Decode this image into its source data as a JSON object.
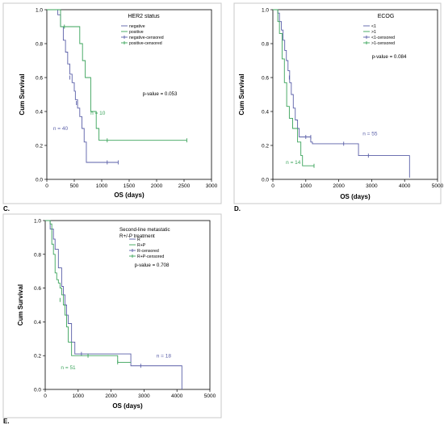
{
  "colors": {
    "blue": "#5a5fa8",
    "green": "#3aa35a",
    "frame": "#000000"
  },
  "panels": [
    {
      "letter": "C.",
      "legend_title": "HER2 status",
      "legend_items": [
        "negative",
        "positive",
        "negative-censored",
        "positive-censored"
      ],
      "pvalue": "p-value = 0.053",
      "annotations": [
        {
          "text": "n = 40",
          "series": 0,
          "x": 250,
          "y": 0.29
        },
        {
          "text": "n = 10",
          "series": 1,
          "x": 930,
          "y": 0.38
        }
      ]
    },
    {
      "letter": "D.",
      "legend_title": "ECOG",
      "legend_items": [
        "<1",
        ">1",
        "<1-censored",
        ">1-censored"
      ],
      "pvalue": "p-value = 0.084",
      "annotations": [
        {
          "text": "n = 55",
          "series": 0,
          "x": 2950,
          "y": 0.26
        },
        {
          "text": "n = 14",
          "series": 1,
          "x": 620,
          "y": 0.09
        }
      ]
    },
    {
      "letter": "E.",
      "legend_title": "Second-line metastatic R+/-P treatment",
      "legend_items": [
        "R",
        "R+P",
        "R-censored",
        "R+P-censored"
      ],
      "pvalue": "p-value = 0.708",
      "annotations": [
        {
          "text": "n = 18",
          "series": 0,
          "x": 3600,
          "y": 0.19
        },
        {
          "text": "n = 51",
          "series": 1,
          "x": 700,
          "y": 0.12
        }
      ]
    }
  ],
  "chart_data": [
    {
      "type": "line",
      "ylabel": "Cum Survival",
      "xlabel": "OS (days)",
      "xlim": [
        0,
        3000
      ],
      "ylim": [
        0,
        1
      ],
      "xticks": [
        0,
        500,
        1000,
        1500,
        2000,
        2500,
        3000
      ],
      "yticks": [
        0.0,
        0.2,
        0.4,
        0.6,
        0.8,
        1.0
      ],
      "series": [
        {
          "name": "negative",
          "color": "#5a5fa8",
          "steps": [
            [
              0,
              1.0
            ],
            [
              200,
              0.97
            ],
            [
              250,
              0.9
            ],
            [
              300,
              0.82
            ],
            [
              340,
              0.75
            ],
            [
              380,
              0.68
            ],
            [
              420,
              0.62
            ],
            [
              460,
              0.57
            ],
            [
              500,
              0.52
            ],
            [
              520,
              0.47
            ],
            [
              560,
              0.42
            ],
            [
              600,
              0.37
            ],
            [
              640,
              0.3
            ],
            [
              680,
              0.22
            ],
            [
              720,
              0.1
            ],
            [
              1300,
              0.1
            ]
          ],
          "censored": [
            [
              420,
              0.6
            ],
            [
              540,
              0.45
            ],
            [
              1100,
              0.1
            ],
            [
              1300,
              0.1
            ]
          ]
        },
        {
          "name": "positive",
          "color": "#3aa35a",
          "steps": [
            [
              0,
              1.0
            ],
            [
              180,
              1.0
            ],
            [
              250,
              0.9
            ],
            [
              600,
              0.8
            ],
            [
              650,
              0.7
            ],
            [
              700,
              0.6
            ],
            [
              800,
              0.4
            ],
            [
              900,
              0.3
            ],
            [
              950,
              0.23
            ],
            [
              2550,
              0.23
            ]
          ],
          "censored": [
            [
              320,
              0.9
            ],
            [
              1100,
              0.23
            ],
            [
              2550,
              0.23
            ]
          ]
        }
      ]
    },
    {
      "type": "line",
      "ylabel": "Cum Survival",
      "xlabel": "OS (days)",
      "xlim": [
        0,
        5000
      ],
      "ylim": [
        0,
        1
      ],
      "xticks": [
        0,
        1000,
        2000,
        3000,
        4000,
        5000
      ],
      "yticks": [
        0.0,
        0.2,
        0.4,
        0.6,
        0.8,
        1.0
      ],
      "series": [
        {
          "name": "<1",
          "color": "#5a5fa8",
          "steps": [
            [
              0,
              1.0
            ],
            [
              150,
              0.98
            ],
            [
              200,
              0.93
            ],
            [
              260,
              0.88
            ],
            [
              310,
              0.82
            ],
            [
              360,
              0.76
            ],
            [
              410,
              0.7
            ],
            [
              460,
              0.64
            ],
            [
              510,
              0.57
            ],
            [
              560,
              0.5
            ],
            [
              620,
              0.42
            ],
            [
              680,
              0.35
            ],
            [
              750,
              0.3
            ],
            [
              800,
              0.25
            ],
            [
              1150,
              0.22
            ],
            [
              1200,
              0.21
            ],
            [
              2600,
              0.14
            ],
            [
              4150,
              0.14
            ],
            [
              4150,
              0.01
            ]
          ],
          "censored": [
            [
              500,
              0.6
            ],
            [
              1000,
              0.25
            ],
            [
              1150,
              0.25
            ],
            [
              2150,
              0.21
            ],
            [
              2900,
              0.14
            ]
          ]
        },
        {
          "name": ">1",
          "color": "#3aa35a",
          "steps": [
            [
              0,
              1.0
            ],
            [
              150,
              0.93
            ],
            [
              200,
              0.86
            ],
            [
              280,
              0.71
            ],
            [
              350,
              0.57
            ],
            [
              420,
              0.43
            ],
            [
              500,
              0.36
            ],
            [
              600,
              0.3
            ],
            [
              750,
              0.22
            ],
            [
              850,
              0.14
            ],
            [
              900,
              0.08
            ],
            [
              1250,
              0.08
            ]
          ],
          "censored": [
            [
              1250,
              0.08
            ]
          ]
        }
      ]
    },
    {
      "type": "line",
      "ylabel": "Cum Survival",
      "xlabel": "OS (days)",
      "xlim": [
        0,
        5000
      ],
      "ylim": [
        0,
        1
      ],
      "xticks": [
        0,
        1000,
        2000,
        3000,
        4000,
        5000
      ],
      "yticks": [
        0.0,
        0.2,
        0.4,
        0.6,
        0.8,
        1.0
      ],
      "series": [
        {
          "name": "R",
          "color": "#5a5fa8",
          "steps": [
            [
              0,
              1.0
            ],
            [
              150,
              0.95
            ],
            [
              250,
              0.89
            ],
            [
              300,
              0.83
            ],
            [
              400,
              0.72
            ],
            [
              500,
              0.61
            ],
            [
              550,
              0.56
            ],
            [
              600,
              0.5
            ],
            [
              650,
              0.44
            ],
            [
              700,
              0.39
            ],
            [
              800,
              0.28
            ],
            [
              900,
              0.21
            ],
            [
              2600,
              0.14
            ],
            [
              4150,
              0.14
            ],
            [
              4150,
              0.0
            ]
          ],
          "censored": [
            [
              1100,
              0.21
            ],
            [
              2900,
              0.14
            ]
          ]
        },
        {
          "name": "R+P",
          "color": "#3aa35a",
          "steps": [
            [
              0,
              1.0
            ],
            [
              150,
              0.98
            ],
            [
              200,
              0.86
            ],
            [
              250,
              0.8
            ],
            [
              300,
              0.69
            ],
            [
              350,
              0.65
            ],
            [
              400,
              0.63
            ],
            [
              450,
              0.6
            ],
            [
              500,
              0.56
            ],
            [
              550,
              0.5
            ],
            [
              600,
              0.44
            ],
            [
              650,
              0.37
            ],
            [
              700,
              0.28
            ],
            [
              800,
              0.2
            ],
            [
              2200,
              0.16
            ],
            [
              2600,
              0.16
            ]
          ],
          "censored": [
            [
              450,
              0.53
            ],
            [
              1300,
              0.2
            ],
            [
              2200,
              0.16
            ]
          ]
        }
      ]
    }
  ]
}
